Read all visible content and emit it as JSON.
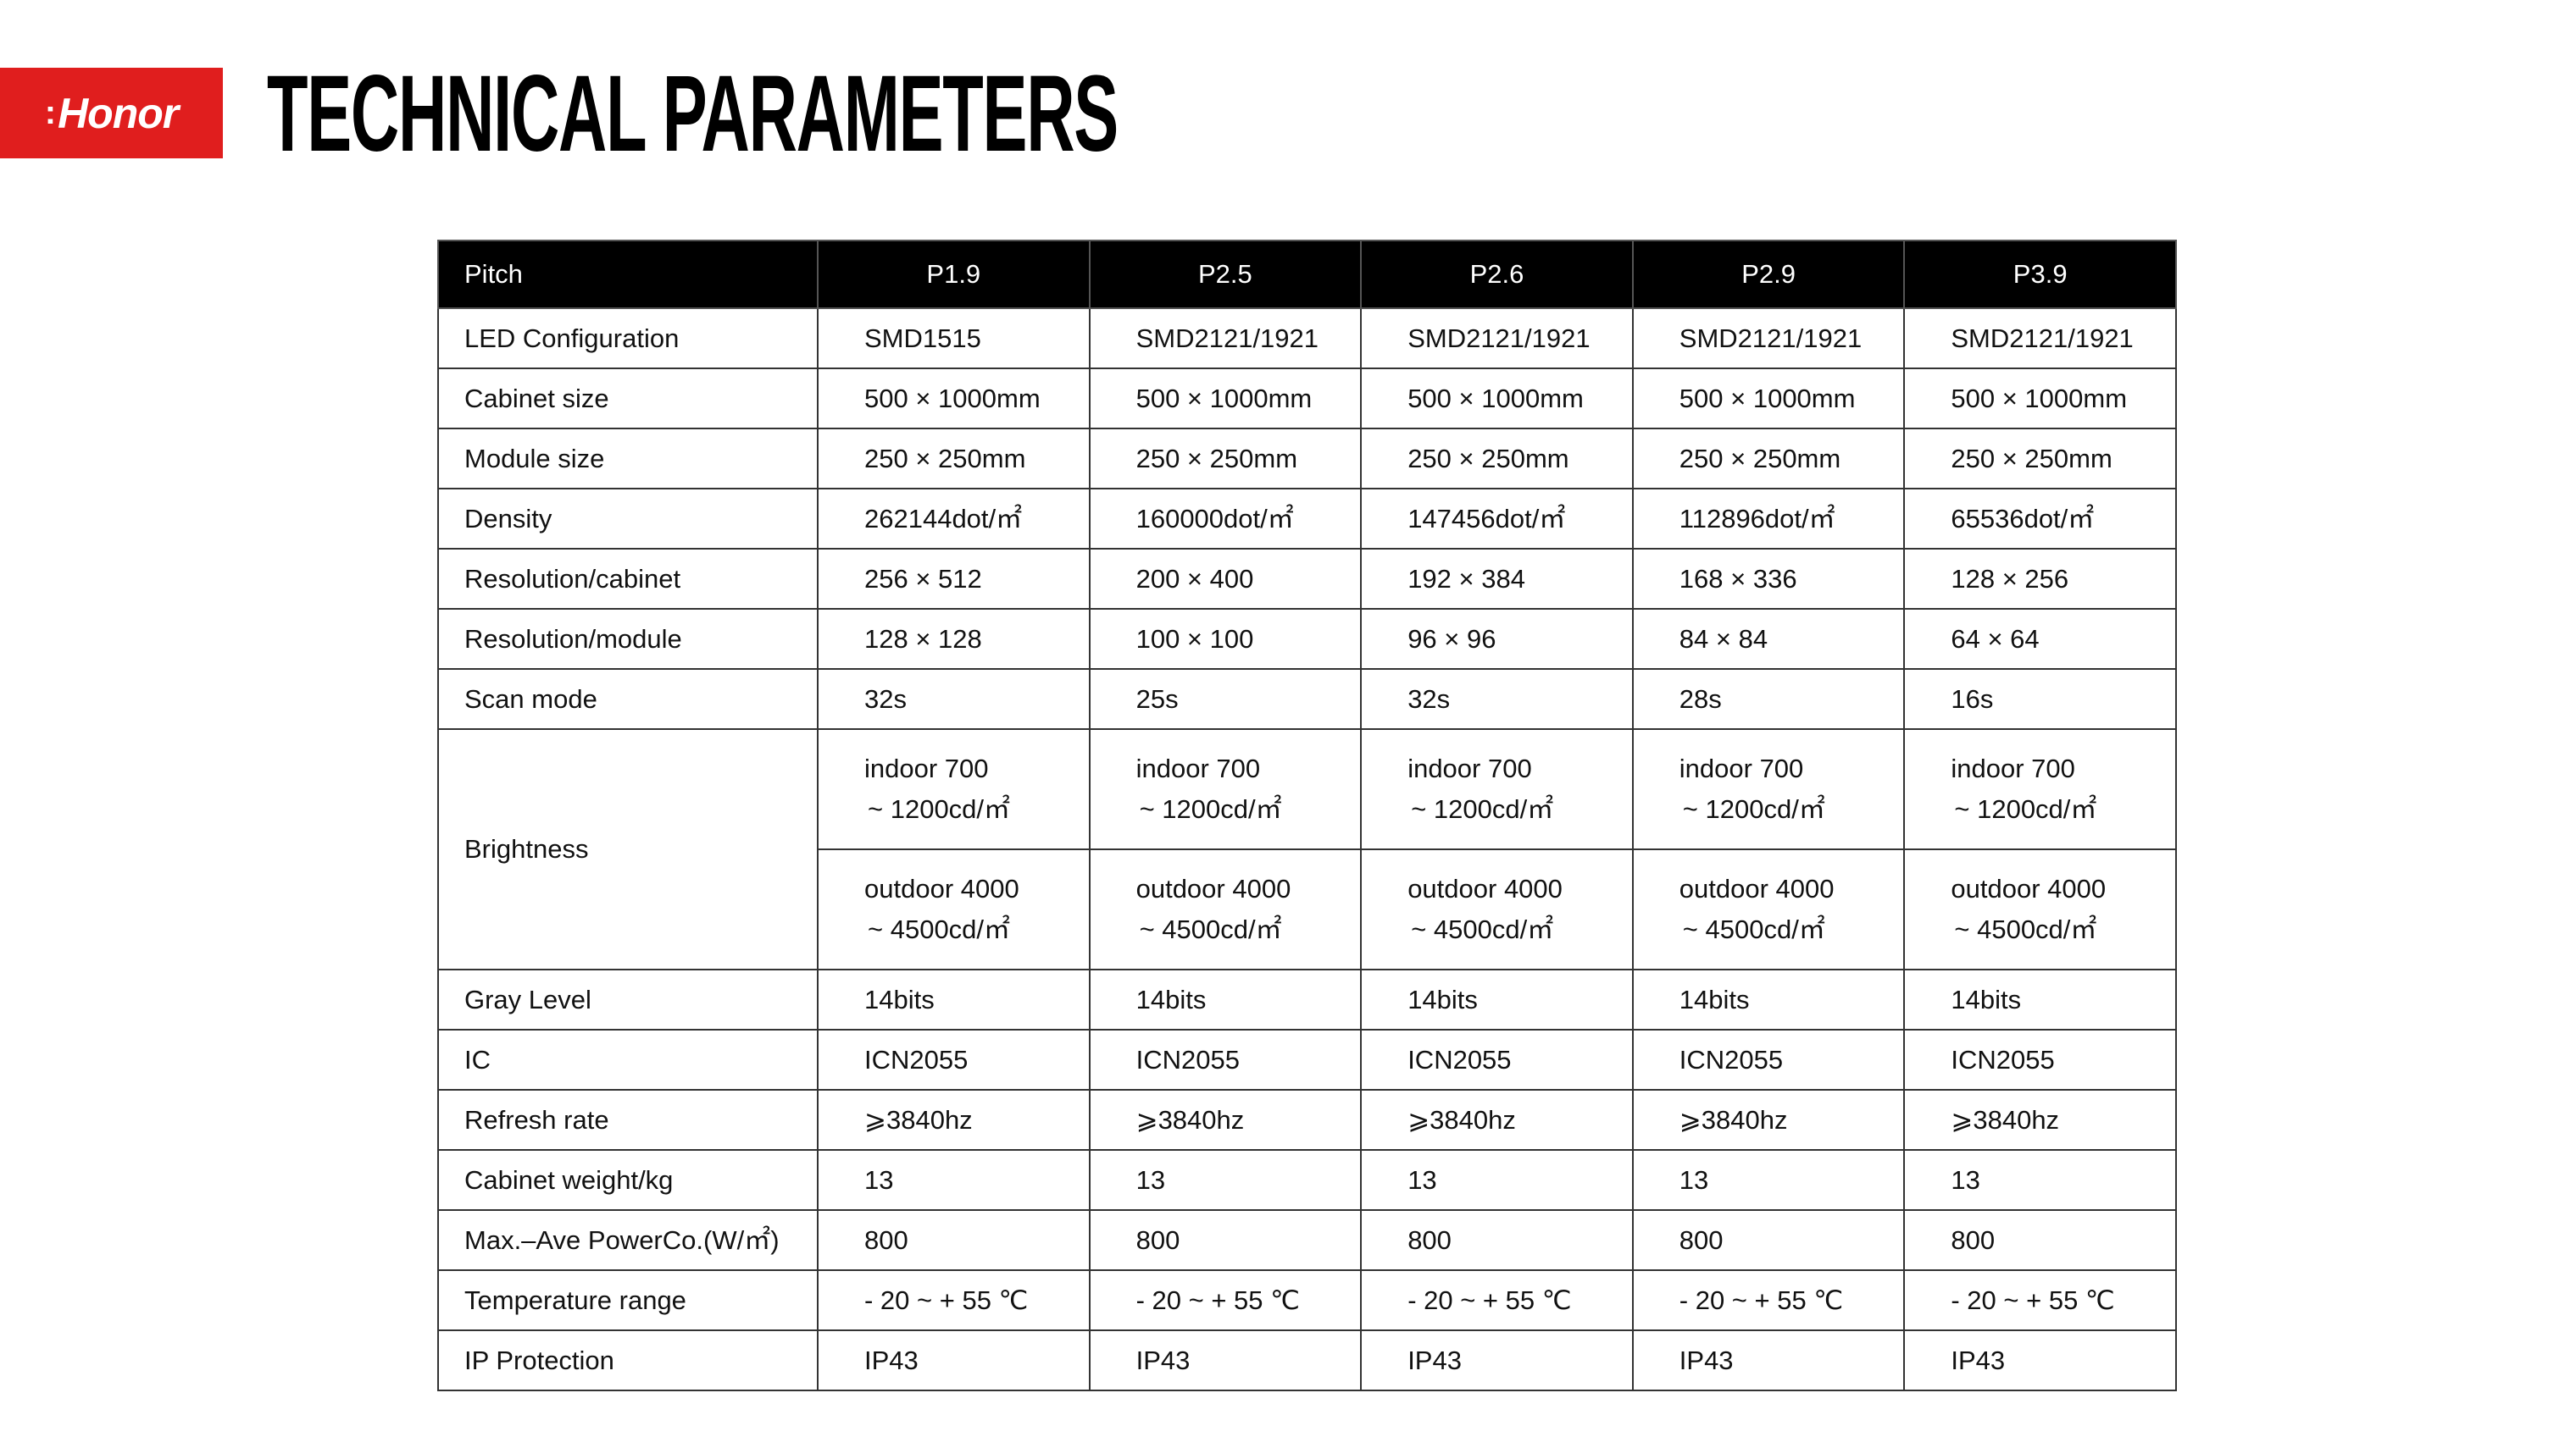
{
  "logo": {
    "brand": "Honor",
    "color": "#e01e1e"
  },
  "title": "TECHNICAL PARAMETERS",
  "table": {
    "header": {
      "label": "Pitch",
      "values": [
        "P1.9",
        "P2.5",
        "P2.6",
        "P2.9",
        "P3.9"
      ]
    },
    "rows_top": [
      {
        "label": "LED Configuration",
        "values": [
          "SMD1515",
          "SMD2121/1921",
          "SMD2121/1921",
          "SMD2121/1921",
          "SMD2121/1921"
        ]
      },
      {
        "label": "Cabinet size",
        "values": [
          "500 × 1000mm",
          "500 × 1000mm",
          "500 × 1000mm",
          "500 × 1000mm",
          "500 × 1000mm"
        ]
      },
      {
        "label": "Module size",
        "values": [
          "250 × 250mm",
          "250 × 250mm",
          "250 × 250mm",
          "250 × 250mm",
          "250 × 250mm"
        ]
      },
      {
        "label": "Density",
        "values": [
          "262144dot/㎡",
          "160000dot/㎡",
          "147456dot/㎡",
          "112896dot/㎡",
          "65536dot/㎡"
        ]
      },
      {
        "label": "Resolution/cabinet",
        "values": [
          "256 × 512",
          "200 × 400",
          "192 × 384",
          "168 × 336",
          "128 × 256"
        ]
      },
      {
        "label": "Resolution/module",
        "values": [
          "128 × 128",
          "100 × 100",
          "96 × 96",
          "84 × 84",
          "64 × 64"
        ]
      },
      {
        "label": "Scan mode",
        "values": [
          "32s",
          "25s",
          "32s",
          "28s",
          "16s"
        ]
      }
    ],
    "brightness": {
      "label": "Brightness",
      "indoor": {
        "line1": "indoor 700",
        "line2": "~ 1200cd/㎡"
      },
      "outdoor": {
        "line1": "outdoor 4000",
        "line2": "~ 4500cd/㎡"
      }
    },
    "rows_bottom": [
      {
        "label": "Gray Level",
        "values": [
          "14bits",
          "14bits",
          "14bits",
          "14bits",
          "14bits"
        ]
      },
      {
        "label": "IC",
        "values": [
          "ICN2055",
          "ICN2055",
          "ICN2055",
          "ICN2055",
          "ICN2055"
        ]
      },
      {
        "label": "Refresh rate",
        "values": [
          "⩾3840hz",
          "⩾3840hz",
          "⩾3840hz",
          "⩾3840hz",
          "⩾3840hz"
        ]
      },
      {
        "label": "Cabinet weight/kg",
        "values": [
          "13",
          "13",
          "13",
          "13",
          "13"
        ]
      },
      {
        "label": "Max.–Ave PowerCo.(W/㎡)",
        "values": [
          "800",
          "800",
          "800",
          "800",
          "800"
        ]
      },
      {
        "label": "Temperature range",
        "values": [
          "- 20 ~ + 55 ℃",
          "- 20 ~ + 55 ℃",
          "- 20 ~ + 55 ℃",
          "- 20 ~ + 55 ℃",
          "- 20 ~ + 55 ℃"
        ]
      },
      {
        "label": "IP Protection",
        "values": [
          "IP43",
          "IP43",
          "IP43",
          "IP43",
          "IP43"
        ]
      }
    ]
  }
}
